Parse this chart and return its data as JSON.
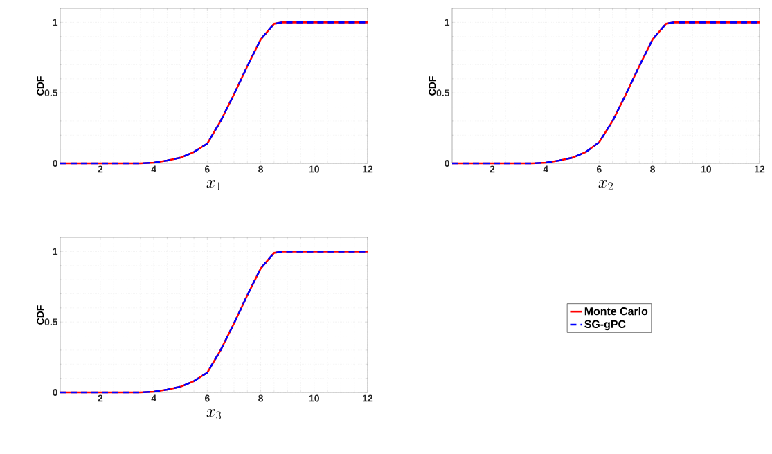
{
  "chart_data": [
    {
      "type": "line",
      "xlabel": "x_1",
      "ylabel": "CDF",
      "xlim": [
        0.5,
        12
      ],
      "ylim": [
        0,
        1.1
      ],
      "xticks": [
        2,
        4,
        6,
        8,
        10,
        12
      ],
      "yticks": [
        0,
        0.5,
        1
      ],
      "grid": true,
      "legend": false,
      "marker": "none",
      "x": [
        0.5,
        3.5,
        4,
        4.5,
        5,
        5.5,
        6,
        6.5,
        7,
        7.5,
        8,
        8.5,
        8.8,
        12
      ],
      "series": [
        {
          "color": "#ff0000",
          "line_style": "solid",
          "values": [
            0,
            0,
            0.005,
            0.02,
            0.04,
            0.08,
            0.14,
            0.3,
            0.49,
            0.69,
            0.88,
            0.99,
            1,
            1
          ]
        },
        {
          "color": "#0000ff",
          "line_style": "dashed",
          "values": [
            0,
            0,
            0.005,
            0.02,
            0.04,
            0.08,
            0.14,
            0.3,
            0.49,
            0.69,
            0.88,
            0.99,
            1,
            1
          ]
        }
      ]
    },
    {
      "type": "line",
      "xlabel": "x_2",
      "ylabel": "CDF",
      "xlim": [
        0.5,
        12
      ],
      "ylim": [
        0,
        1.1
      ],
      "xticks": [
        2,
        4,
        6,
        8,
        10,
        12
      ],
      "yticks": [
        0,
        0.5,
        1
      ],
      "grid": true,
      "legend": false,
      "marker": "none",
      "x": [
        0.5,
        3.5,
        4,
        4.5,
        5,
        5.5,
        6,
        6.5,
        7,
        7.5,
        8,
        8.5,
        8.8,
        12
      ],
      "series": [
        {
          "color": "#ff0000",
          "line_style": "solid",
          "values": [
            0,
            0,
            0.005,
            0.02,
            0.04,
            0.08,
            0.15,
            0.3,
            0.49,
            0.69,
            0.88,
            0.99,
            1,
            1
          ]
        },
        {
          "color": "#0000ff",
          "line_style": "dashed",
          "values": [
            0,
            0,
            0.005,
            0.02,
            0.04,
            0.08,
            0.15,
            0.3,
            0.49,
            0.69,
            0.88,
            0.99,
            1,
            1
          ]
        }
      ]
    },
    {
      "type": "line",
      "xlabel": "x_3",
      "ylabel": "CDF",
      "xlim": [
        0.5,
        12
      ],
      "ylim": [
        0,
        1.1
      ],
      "xticks": [
        2,
        4,
        6,
        8,
        10,
        12
      ],
      "yticks": [
        0,
        0.5,
        1
      ],
      "grid": true,
      "legend": "right",
      "marker": "none",
      "x": [
        0.5,
        3.5,
        4,
        4.5,
        5,
        5.5,
        6,
        6.5,
        7,
        7.5,
        8,
        8.5,
        8.8,
        12
      ],
      "series": [
        {
          "name": "Monte Carlo",
          "color": "#ff0000",
          "line_style": "solid",
          "values": [
            0,
            0,
            0.005,
            0.02,
            0.04,
            0.08,
            0.14,
            0.3,
            0.49,
            0.69,
            0.88,
            0.99,
            1,
            1
          ]
        },
        {
          "name": "SG-gPC",
          "color": "#0000ff",
          "line_style": "dashed",
          "values": [
            0,
            0,
            0.005,
            0.02,
            0.04,
            0.08,
            0.14,
            0.3,
            0.49,
            0.69,
            0.88,
            0.99,
            1,
            1
          ]
        }
      ]
    }
  ]
}
